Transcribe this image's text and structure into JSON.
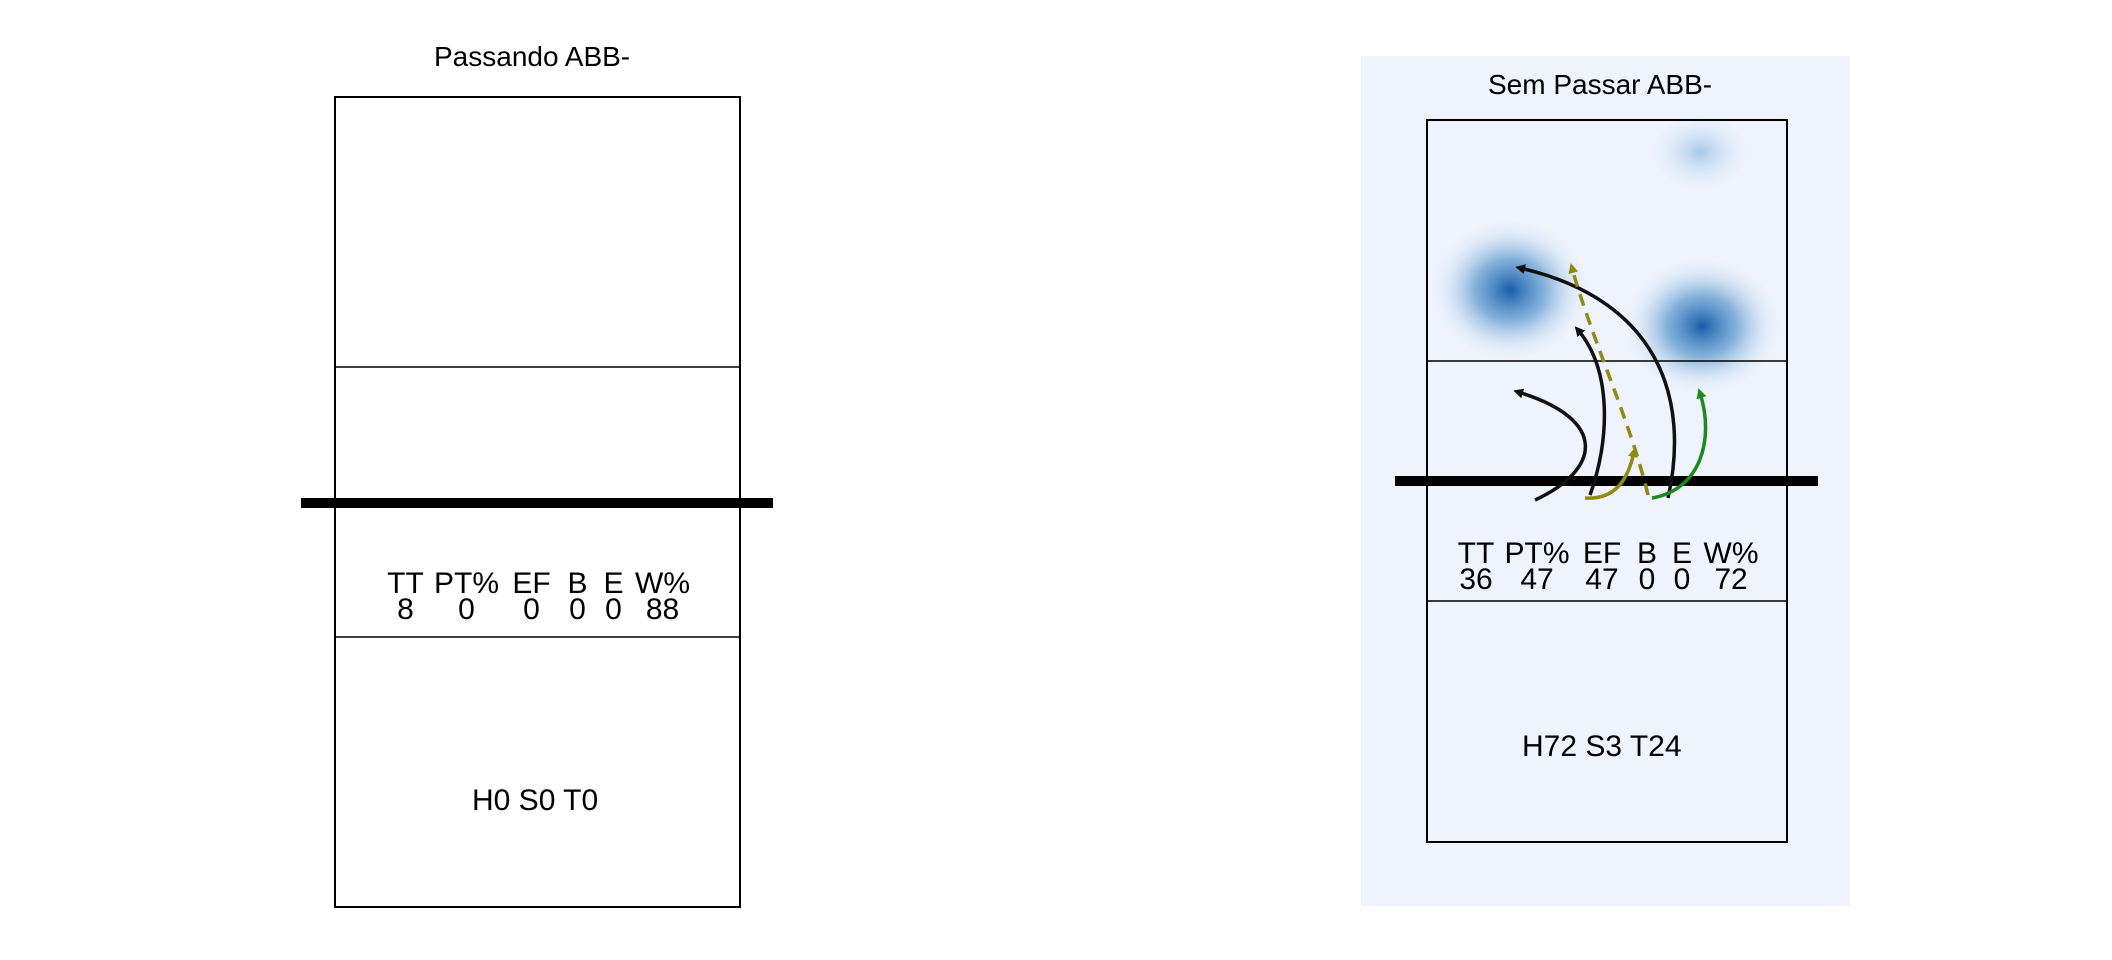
{
  "panels": [
    {
      "title": "Passando ABB-",
      "stats_headers": [
        "TT",
        "PT%",
        "EF",
        "B",
        "E",
        "W%"
      ],
      "stats_values": [
        "8",
        "0",
        "0",
        "0",
        "0",
        "88"
      ],
      "counts": "H0 S0 T0"
    },
    {
      "title": "Sem Passar ABB-",
      "stats_headers": [
        "TT",
        "PT%",
        "EF",
        "B",
        "E",
        "W%"
      ],
      "stats_values": [
        "36",
        "47",
        "47",
        "0",
        "0",
        "72"
      ],
      "counts": "H72 S3 T24",
      "background_color": "#eef3fd",
      "heat_color": "#1f6fb4"
    }
  ],
  "arrow_colors": {
    "black": "#111111",
    "olive": "#8f8a12",
    "green": "#1e8a1e"
  }
}
